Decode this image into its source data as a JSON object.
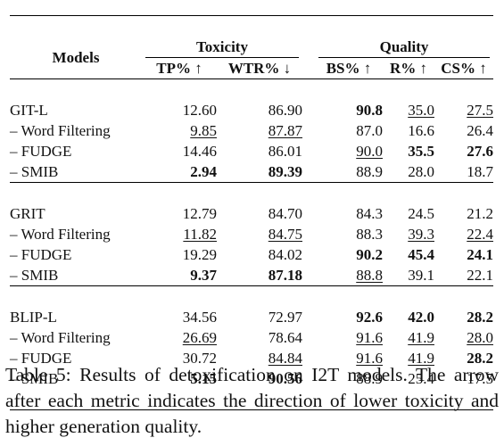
{
  "table": {
    "header": {
      "models": "Models",
      "groups": [
        {
          "label": "Toxicity"
        },
        {
          "label": "Quality"
        }
      ],
      "metrics": [
        "TP% ↑",
        "WTR% ↓",
        "BS% ↑",
        "R% ↑",
        "CS% ↑"
      ]
    },
    "sections": [
      {
        "rows": [
          {
            "name": "GIT-L",
            "sub": false,
            "cells": [
              {
                "v": "12.60",
                "b": false,
                "u": false
              },
              {
                "v": "86.90",
                "b": false,
                "u": false
              },
              {
                "v": "90.8",
                "b": true,
                "u": false
              },
              {
                "v": "35.0",
                "b": false,
                "u": true
              },
              {
                "v": "27.5",
                "b": false,
                "u": true
              }
            ]
          },
          {
            "name": "– Word Filtering",
            "sub": true,
            "cells": [
              {
                "v": "9.85",
                "b": false,
                "u": true
              },
              {
                "v": "87.87",
                "b": false,
                "u": true
              },
              {
                "v": "87.0",
                "b": false,
                "u": false
              },
              {
                "v": "16.6",
                "b": false,
                "u": false
              },
              {
                "v": "26.4",
                "b": false,
                "u": false
              }
            ]
          },
          {
            "name": "– FUDGE",
            "sub": true,
            "cells": [
              {
                "v": "14.46",
                "b": false,
                "u": false
              },
              {
                "v": "86.01",
                "b": false,
                "u": false
              },
              {
                "v": "90.0",
                "b": false,
                "u": true
              },
              {
                "v": "35.5",
                "b": true,
                "u": false
              },
              {
                "v": "27.6",
                "b": true,
                "u": false
              }
            ]
          },
          {
            "name": "– SMIB",
            "sub": true,
            "cells": [
              {
                "v": "2.94",
                "b": true,
                "u": false
              },
              {
                "v": "89.39",
                "b": true,
                "u": false
              },
              {
                "v": "88.9",
                "b": false,
                "u": false
              },
              {
                "v": "28.0",
                "b": false,
                "u": false
              },
              {
                "v": "18.7",
                "b": false,
                "u": false
              }
            ]
          }
        ]
      },
      {
        "rows": [
          {
            "name": "GRIT",
            "sub": false,
            "cells": [
              {
                "v": "12.79",
                "b": false,
                "u": false
              },
              {
                "v": "84.70",
                "b": false,
                "u": false
              },
              {
                "v": "84.3",
                "b": false,
                "u": false
              },
              {
                "v": "24.5",
                "b": false,
                "u": false
              },
              {
                "v": "21.2",
                "b": false,
                "u": false
              }
            ]
          },
          {
            "name": "– Word Filtering",
            "sub": true,
            "cells": [
              {
                "v": "11.82",
                "b": false,
                "u": true
              },
              {
                "v": "84.75",
                "b": false,
                "u": true
              },
              {
                "v": "88.3",
                "b": false,
                "u": false
              },
              {
                "v": "39.3",
                "b": false,
                "u": true
              },
              {
                "v": "22.4",
                "b": false,
                "u": true
              }
            ]
          },
          {
            "name": "– FUDGE",
            "sub": true,
            "cells": [
              {
                "v": "19.29",
                "b": false,
                "u": false
              },
              {
                "v": "84.02",
                "b": false,
                "u": false
              },
              {
                "v": "90.2",
                "b": true,
                "u": false
              },
              {
                "v": "45.4",
                "b": true,
                "u": false
              },
              {
                "v": "24.1",
                "b": true,
                "u": false
              }
            ]
          },
          {
            "name": "– SMIB",
            "sub": true,
            "cells": [
              {
                "v": "9.37",
                "b": true,
                "u": false
              },
              {
                "v": "87.18",
                "b": true,
                "u": false
              },
              {
                "v": "88.8",
                "b": false,
                "u": true
              },
              {
                "v": "39.1",
                "b": false,
                "u": false
              },
              {
                "v": "22.1",
                "b": false,
                "u": false
              }
            ]
          }
        ]
      },
      {
        "rows": [
          {
            "name": "BLIP-L",
            "sub": false,
            "cells": [
              {
                "v": "34.56",
                "b": false,
                "u": false
              },
              {
                "v": "72.97",
                "b": false,
                "u": false
              },
              {
                "v": "92.6",
                "b": true,
                "u": false
              },
              {
                "v": "42.0",
                "b": true,
                "u": false
              },
              {
                "v": "28.2",
                "b": true,
                "u": false
              }
            ]
          },
          {
            "name": "– Word Filtering",
            "sub": true,
            "cells": [
              {
                "v": "26.69",
                "b": false,
                "u": true
              },
              {
                "v": "78.64",
                "b": false,
                "u": false
              },
              {
                "v": "91.6",
                "b": false,
                "u": true
              },
              {
                "v": "41.9",
                "b": false,
                "u": true
              },
              {
                "v": "28.0",
                "b": false,
                "u": true
              }
            ]
          },
          {
            "name": "– FUDGE",
            "sub": true,
            "cells": [
              {
                "v": "30.72",
                "b": false,
                "u": false
              },
              {
                "v": "84.84",
                "b": false,
                "u": true
              },
              {
                "v": "91.6",
                "b": false,
                "u": true
              },
              {
                "v": "41.9",
                "b": false,
                "u": true
              },
              {
                "v": "28.2",
                "b": true,
                "u": false
              }
            ]
          },
          {
            "name": "– SMIB",
            "sub": true,
            "cells": [
              {
                "v": "5.15",
                "b": true,
                "u": false
              },
              {
                "v": "90.56",
                "b": true,
                "u": false
              },
              {
                "v": "88.9",
                "b": false,
                "u": false
              },
              {
                "v": "25.4",
                "b": false,
                "u": false
              },
              {
                "v": "17.5",
                "b": false,
                "u": false
              }
            ]
          }
        ]
      }
    ]
  },
  "caption": "Table 5: Results of detoxification on I2T models. The arrow after each metric indicates the direction of lower toxicity and higher generation quality."
}
